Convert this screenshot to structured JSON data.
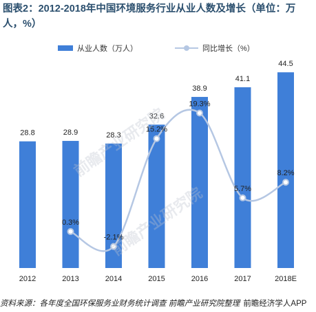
{
  "title": "图表2：2012-2018年中国环境服务行业从业人数及增长（单位：万人，%）",
  "legend": {
    "bar_label": "从业人数（万人）",
    "line_label": "同比增长（%）"
  },
  "source": "资料来源：各年度全国环保服务业财务统计调查  前瞻产业研究院整理",
  "watermark": "前瞻产业研究院",
  "footer_brand": "前瞻经济学人APP",
  "colors": {
    "bar": "#3f7fd8",
    "line": "#b5c7e3",
    "title": "#2b4f6e"
  },
  "chart_data": {
    "type": "bar",
    "categories": [
      "2012",
      "2013",
      "2014",
      "2015",
      "2016",
      "2017",
      "2018E"
    ],
    "series": [
      {
        "name": "从业人数（万人）",
        "type": "bar",
        "values": [
          28.8,
          28.9,
          28.3,
          32.6,
          38.9,
          41.1,
          44.5
        ],
        "labels": [
          "28.8",
          "28.9",
          "28.3",
          "32.6",
          "38.9",
          "41.1",
          "44.5"
        ]
      },
      {
        "name": "同比增长（%）",
        "type": "line",
        "smooth": true,
        "values": [
          null,
          0.3,
          -2.1,
          15.2,
          19.3,
          5.7,
          8.2
        ],
        "labels": [
          "",
          "0.3%",
          "-2.1%",
          "15.2%",
          "19.3%",
          "5.7%",
          "8.2%"
        ]
      }
    ],
    "bar_ylim": [
      0,
      50
    ],
    "line_ylim": [
      -5,
      22
    ],
    "grid": false,
    "legend_position": "top"
  }
}
